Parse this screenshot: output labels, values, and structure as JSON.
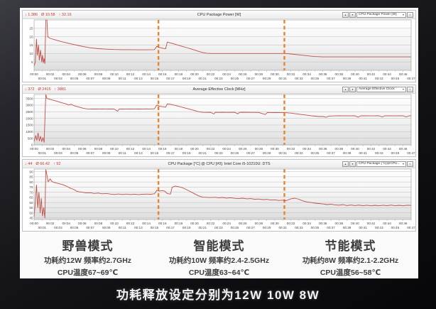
{
  "colors": {
    "series": "#bf4f48",
    "divider": "#e6862c",
    "grid": "#bdbdbd",
    "plot_border": "#9a9a9a",
    "accent_text_red": "#c3392f"
  },
  "controls": {
    "prev": "▴",
    "next": "▾",
    "menu": "▪",
    "caret": "▾"
  },
  "time_axis": {
    "ticks": [
      "00:00",
      "00:01",
      "00:02",
      "00:03",
      "00:04",
      "00:05",
      "00:06",
      "00:07",
      "00:08",
      "00:09",
      "00:10",
      "00:11",
      "00:12",
      "00:13",
      "00:14",
      "00:15",
      "00:16",
      "00:17",
      "00:18",
      "00:19",
      "00:20",
      "00:21",
      "00:22",
      "00:23",
      "00:24",
      "00:25",
      "00:26",
      "00:27",
      "00:28",
      "00:29",
      "00:30",
      "00:31",
      "00:32",
      "00:33",
      "00:34",
      "00:35",
      "00:36",
      "00:37",
      "00:38",
      "00:39",
      "00:40",
      "00:41",
      "00:42",
      "00:43",
      "00:44",
      "00:45",
      "00:46",
      "00:47"
    ]
  },
  "chart_data": [
    {
      "type": "line",
      "title": "CPU Package Power [W]",
      "unit": "W",
      "stats": {
        "min_label": "↓ 1.386",
        "avg_label": "Ø 10.58",
        "max_label": "↑ 32.16"
      },
      "dropdown_label": "CPU Package Power [W]",
      "ylim": [
        0,
        30
      ],
      "yticks": [
        5,
        10,
        15,
        20,
        25
      ],
      "dividers": [
        15.5,
        31.2
      ],
      "legend_position": "none",
      "grid": true,
      "points": [
        [
          0,
          2.5
        ],
        [
          0.15,
          5
        ],
        [
          0.3,
          18.5
        ],
        [
          0.4,
          9
        ],
        [
          0.55,
          15
        ],
        [
          0.65,
          6
        ],
        [
          0.8,
          12
        ],
        [
          0.95,
          5
        ],
        [
          1.05,
          9
        ],
        [
          1.15,
          4.5
        ],
        [
          1.25,
          7
        ],
        [
          1.35,
          4
        ],
        [
          1.45,
          32
        ],
        [
          1.6,
          30
        ],
        [
          1.7,
          20
        ],
        [
          2,
          19
        ],
        [
          2.5,
          18.3
        ],
        [
          3,
          17.6
        ],
        [
          3.5,
          17
        ],
        [
          4,
          16.4
        ],
        [
          4.5,
          15.8
        ],
        [
          5,
          15.3
        ],
        [
          5.5,
          14.8
        ],
        [
          6,
          14.3
        ],
        [
          6.5,
          13.8
        ],
        [
          7,
          13.4
        ],
        [
          8,
          12.9
        ],
        [
          9,
          12.6
        ],
        [
          10,
          12.4
        ],
        [
          11,
          12.3
        ],
        [
          12,
          12.3
        ],
        [
          13,
          12.2
        ],
        [
          14,
          12.2
        ],
        [
          15,
          12.3
        ],
        [
          15.3,
          14.3
        ],
        [
          15.6,
          13.6
        ],
        [
          16,
          13.2
        ],
        [
          16.4,
          12.8
        ],
        [
          16.6,
          16.8
        ],
        [
          17,
          16.3
        ],
        [
          17.5,
          15.6
        ],
        [
          18,
          14.9
        ],
        [
          18.5,
          14.2
        ],
        [
          19,
          13.5
        ],
        [
          19.5,
          12.8
        ],
        [
          20,
          12.1
        ],
        [
          20.5,
          11.3
        ],
        [
          21,
          10.6
        ],
        [
          21.5,
          10.2
        ],
        [
          22,
          10
        ],
        [
          23,
          10
        ],
        [
          24,
          10
        ],
        [
          25,
          10
        ],
        [
          26,
          10
        ],
        [
          27,
          10
        ],
        [
          28,
          10
        ],
        [
          29,
          10
        ],
        [
          30,
          10
        ],
        [
          31,
          10
        ],
        [
          31.4,
          10
        ],
        [
          32,
          9.7
        ],
        [
          33,
          9.2
        ],
        [
          34,
          8.7
        ],
        [
          34.5,
          8.4
        ],
        [
          35,
          8.2
        ],
        [
          36,
          8
        ],
        [
          38,
          8
        ],
        [
          40,
          8
        ],
        [
          42,
          8
        ],
        [
          44,
          8
        ],
        [
          46,
          8
        ],
        [
          47,
          8
        ]
      ]
    },
    {
      "type": "line",
      "title": "Average Effective Clock [MHz]",
      "unit": "MHz",
      "stats": {
        "min_label": "↓ 372",
        "avg_label": "Ø 2415",
        "max_label": "↑ 3881"
      },
      "dropdown_label": "Average Effective Clock",
      "ylim": [
        0,
        3800
      ],
      "yticks": [
        0,
        500,
        1000,
        1500,
        2000,
        2500,
        3000,
        3500
      ],
      "dividers": [
        15.5,
        31.2
      ],
      "legend_position": "none",
      "grid": true,
      "points": [
        [
          0,
          250
        ],
        [
          0.2,
          700
        ],
        [
          0.35,
          350
        ],
        [
          0.5,
          900
        ],
        [
          0.65,
          300
        ],
        [
          0.8,
          650
        ],
        [
          0.95,
          250
        ],
        [
          1.1,
          550
        ],
        [
          1.25,
          200
        ],
        [
          1.45,
          3850
        ],
        [
          1.6,
          3500
        ],
        [
          2,
          3430
        ],
        [
          2.5,
          3350
        ],
        [
          3,
          3260
        ],
        [
          3.5,
          3170
        ],
        [
          4,
          3090
        ],
        [
          4.3,
          3000
        ],
        [
          4.6,
          3060
        ],
        [
          5,
          2950
        ],
        [
          5.5,
          2870
        ],
        [
          6,
          2780
        ],
        [
          6.5,
          2720
        ],
        [
          7,
          2700
        ],
        [
          7.5,
          2710
        ],
        [
          8,
          2700
        ],
        [
          8.5,
          2715
        ],
        [
          9,
          2700
        ],
        [
          9.5,
          2710
        ],
        [
          10,
          2700
        ],
        [
          10.4,
          2540
        ],
        [
          10.6,
          2700
        ],
        [
          11,
          2705
        ],
        [
          11.5,
          2700
        ],
        [
          12,
          2710
        ],
        [
          12.5,
          2700
        ],
        [
          13,
          2705
        ],
        [
          13.5,
          2700
        ],
        [
          14,
          2715
        ],
        [
          14.5,
          2710
        ],
        [
          15,
          2720
        ],
        [
          15.3,
          3010
        ],
        [
          15.6,
          2930
        ],
        [
          16,
          2880
        ],
        [
          16.4,
          2840
        ],
        [
          16.6,
          3090
        ],
        [
          17,
          3060
        ],
        [
          17.5,
          2990
        ],
        [
          18,
          2910
        ],
        [
          18.5,
          2830
        ],
        [
          19,
          2750
        ],
        [
          19.5,
          2670
        ],
        [
          20,
          2590
        ],
        [
          20.5,
          2500
        ],
        [
          21,
          2455
        ],
        [
          21.5,
          2450
        ],
        [
          22,
          2455
        ],
        [
          22.4,
          2330
        ],
        [
          22.6,
          2455
        ],
        [
          23,
          2450
        ],
        [
          23.5,
          2455
        ],
        [
          24,
          2450
        ],
        [
          25,
          2455
        ],
        [
          25.4,
          2340
        ],
        [
          25.6,
          2450
        ],
        [
          26,
          2455
        ],
        [
          27,
          2450
        ],
        [
          28,
          2445
        ],
        [
          28.8,
          2290
        ],
        [
          29.1,
          2445
        ],
        [
          29.5,
          2440
        ],
        [
          30,
          2435
        ],
        [
          30.5,
          2430
        ],
        [
          31,
          2430
        ],
        [
          31.4,
          2425
        ],
        [
          32,
          2400
        ],
        [
          32.5,
          2360
        ],
        [
          33,
          2320
        ],
        [
          33.5,
          2280
        ],
        [
          34,
          2240
        ],
        [
          34.5,
          2200
        ],
        [
          35,
          2170
        ],
        [
          35.5,
          2140
        ],
        [
          36,
          2145
        ],
        [
          36.4,
          2080
        ],
        [
          36.7,
          2160
        ],
        [
          37,
          2180
        ],
        [
          37.5,
          2190
        ],
        [
          38,
          2195
        ],
        [
          39,
          2190
        ],
        [
          40,
          2195
        ],
        [
          40.4,
          2090
        ],
        [
          40.7,
          2190
        ],
        [
          41,
          2195
        ],
        [
          42,
          2190
        ],
        [
          43,
          2195
        ],
        [
          43.4,
          2110
        ],
        [
          43.7,
          2190
        ],
        [
          44,
          2195
        ],
        [
          45,
          2190
        ],
        [
          46,
          2195
        ],
        [
          46.4,
          2110
        ],
        [
          46.7,
          2190
        ],
        [
          47,
          2195
        ]
      ]
    },
    {
      "type": "line",
      "title": "CPU Package [°C] @ CPU [#0]: Intel Core i5-10210U: DTS",
      "unit": "°C",
      "stats": {
        "min_label": "↓ 44",
        "avg_label": "Ø 66.42",
        "max_label": "↑ 92"
      },
      "dropdown_label": "CPU Package [°C]@CPU...",
      "ylim": [
        43.5,
        92.5
      ],
      "yticks": [
        45,
        50,
        55,
        60,
        65,
        70,
        75,
        80,
        85,
        90
      ],
      "dividers": [
        15.5,
        31.2
      ],
      "legend_position": "none",
      "grid": true,
      "points": [
        [
          0,
          46
        ],
        [
          0.15,
          60
        ],
        [
          0.3,
          77
        ],
        [
          0.45,
          55
        ],
        [
          0.6,
          70
        ],
        [
          0.75,
          50
        ],
        [
          0.9,
          64
        ],
        [
          1.05,
          47
        ],
        [
          1.2,
          55
        ],
        [
          1.35,
          45
        ],
        [
          1.45,
          92
        ],
        [
          1.6,
          87
        ],
        [
          1.75,
          80
        ],
        [
          2,
          83
        ],
        [
          2.2,
          80.5
        ],
        [
          2.5,
          79.5
        ],
        [
          3,
          78.5
        ],
        [
          3.5,
          77.5
        ],
        [
          4,
          76
        ],
        [
          4.5,
          74
        ],
        [
          5,
          72.5
        ],
        [
          5.3,
          71
        ],
        [
          5.6,
          70.5
        ],
        [
          6,
          70
        ],
        [
          6.5,
          69.3
        ],
        [
          7,
          69.5
        ],
        [
          7.5,
          68.8
        ],
        [
          8,
          69.2
        ],
        [
          8.5,
          68.5
        ],
        [
          9,
          68.8
        ],
        [
          9.5,
          68.2
        ],
        [
          10,
          67.8
        ],
        [
          10.5,
          68.3
        ],
        [
          11,
          67.8
        ],
        [
          11.5,
          68.2
        ],
        [
          12,
          67.8
        ],
        [
          12.5,
          68.1
        ],
        [
          13,
          67.7
        ],
        [
          13.5,
          68
        ],
        [
          14,
          68.2
        ],
        [
          14.5,
          68
        ],
        [
          15,
          68.5
        ],
        [
          15.3,
          71.8
        ],
        [
          15.6,
          71.2
        ],
        [
          16,
          71.6
        ],
        [
          16.3,
          71
        ],
        [
          16.6,
          68.6
        ],
        [
          17,
          68.2
        ],
        [
          17.2,
          74.8
        ],
        [
          17.6,
          76
        ],
        [
          18,
          75.4
        ],
        [
          18.4,
          74.6
        ],
        [
          19,
          72.5
        ],
        [
          19.5,
          70.5
        ],
        [
          20,
          68.5
        ],
        [
          20.5,
          66.5
        ],
        [
          21,
          65.2
        ],
        [
          21.5,
          65
        ],
        [
          22,
          64.8
        ],
        [
          22.5,
          65.1
        ],
        [
          23,
          64.6
        ],
        [
          23.5,
          64.9
        ],
        [
          24,
          64.3
        ],
        [
          24.5,
          64.7
        ],
        [
          25,
          64.1
        ],
        [
          25.5,
          63.8
        ],
        [
          26,
          64.2
        ],
        [
          26.5,
          63.6
        ],
        [
          27,
          63.8
        ],
        [
          27.5,
          63.2
        ],
        [
          28,
          63.4
        ],
        [
          28.5,
          62.8
        ],
        [
          29,
          63
        ],
        [
          29.5,
          62.4
        ],
        [
          30,
          62.6
        ],
        [
          30.5,
          62
        ],
        [
          31,
          62.3
        ],
        [
          31.4,
          61.8
        ],
        [
          32,
          63.6
        ],
        [
          32.5,
          64.2
        ],
        [
          33,
          63.2
        ],
        [
          33.5,
          61.6
        ],
        [
          34,
          60.6
        ],
        [
          34.5,
          60
        ],
        [
          35,
          59.4
        ],
        [
          35.5,
          59
        ],
        [
          36,
          58.6
        ],
        [
          36.5,
          58
        ],
        [
          37,
          58.4
        ],
        [
          37.5,
          57.8
        ],
        [
          38,
          57.4
        ],
        [
          38.5,
          58
        ],
        [
          39,
          57
        ],
        [
          39.5,
          57.6
        ],
        [
          40,
          57
        ],
        [
          40.5,
          57.5
        ],
        [
          41,
          56.9
        ],
        [
          41.5,
          57.4
        ],
        [
          42,
          56.8
        ],
        [
          42.5,
          57.3
        ],
        [
          43,
          56.8
        ],
        [
          43.5,
          57.4
        ],
        [
          44,
          56.9
        ],
        [
          44.5,
          57.5
        ],
        [
          45,
          56.8
        ],
        [
          45.5,
          57.3
        ],
        [
          46,
          56.8
        ],
        [
          46.5,
          57.4
        ],
        [
          47,
          57.2
        ]
      ]
    }
  ],
  "modes": [
    {
      "title": "野兽模式",
      "power_freq": "功耗约12W 频率约2.7GHz",
      "temp": "CPU温度67~69℃"
    },
    {
      "title": "智能模式",
      "power_freq": "功耗约10W 频率约2.4-2.5GHz",
      "temp": "CPU温度63~64℃"
    },
    {
      "title": "节能模式",
      "power_freq": "功耗约8W 频率约2.1-2.2GHz",
      "temp": "CPU温度56~58℃"
    }
  ],
  "caption": "功耗释放设定分别为12W  10W  8W"
}
